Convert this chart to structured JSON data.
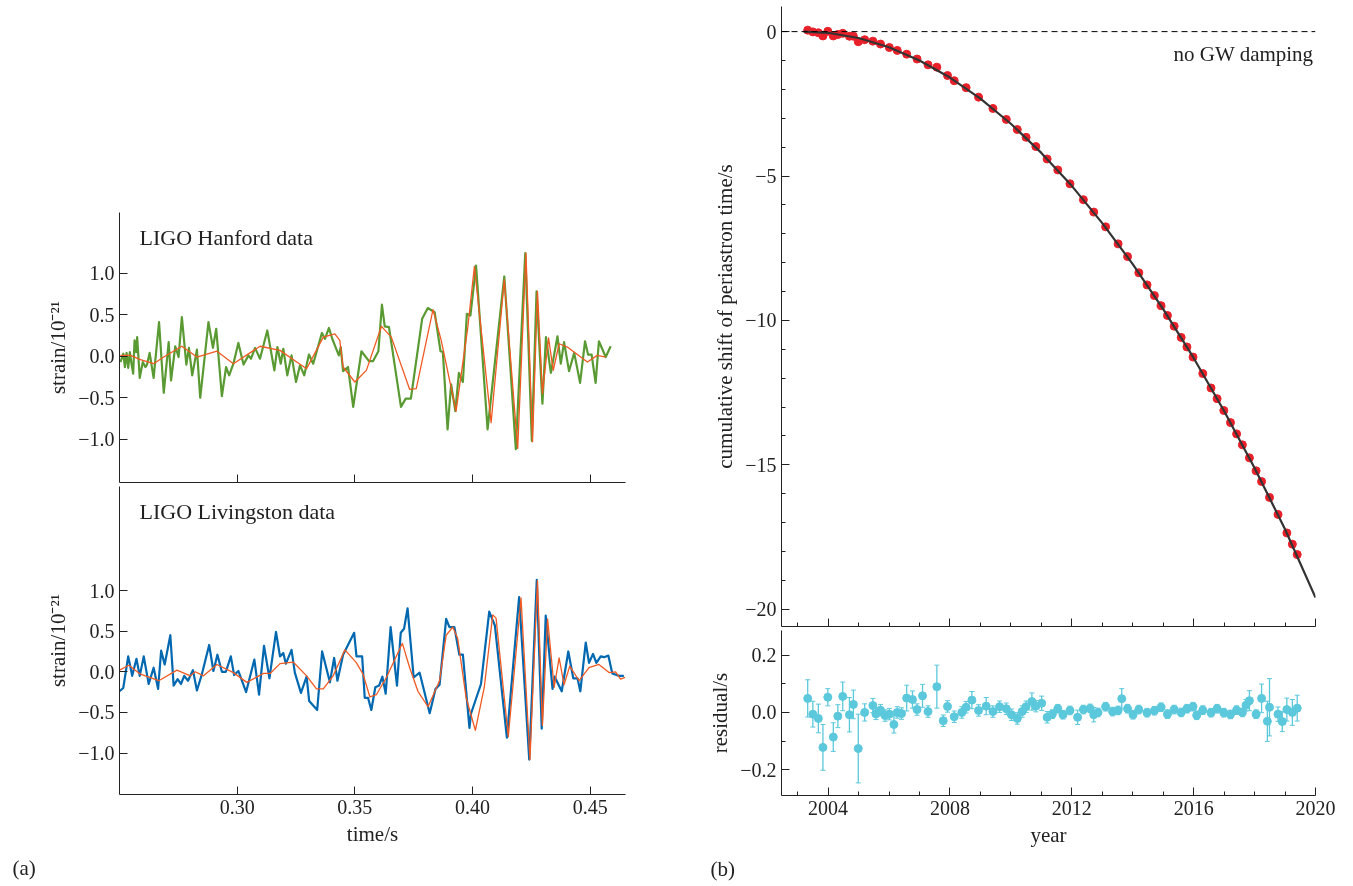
{
  "chart_data": [
    {
      "type": "line",
      "title": "LIGO Hanford data",
      "ylabel": "strain/10⁻²¹",
      "tick_labels": "y",
      "xlim": [
        0.25,
        0.465
      ],
      "ylim": [
        -1.52,
        1.73
      ],
      "xticks": [
        {
          "value": 0.3,
          "label": null
        },
        {
          "value": 0.35,
          "label": null
        },
        {
          "value": 0.4,
          "label": null
        },
        {
          "value": 0.45,
          "label": null
        }
      ],
      "yticks": [
        {
          "value": -1,
          "label": "−1.0"
        },
        {
          "value": -0.5,
          "label": "−0.5"
        },
        {
          "value": 0,
          "label": "0.0"
        },
        {
          "value": 0.5,
          "label": "0.5"
        },
        {
          "value": 1,
          "label": "1.0"
        }
      ],
      "series": [
        {
          "color": "#5a9a32",
          "x": [
            0.2504,
            0.2516,
            0.2523,
            0.253,
            0.2537,
            0.2544,
            0.2552,
            0.2558,
            0.2564,
            0.2571,
            0.2575,
            0.2586,
            0.2599,
            0.261,
            0.2617,
            0.2628,
            0.2645,
            0.2668,
            0.2688,
            0.2709,
            0.2719,
            0.2737,
            0.2751,
            0.2765,
            0.2784,
            0.2795,
            0.2809,
            0.2829,
            0.2843,
            0.2878,
            0.2897,
            0.2911,
            0.2935,
            0.2953,
            0.2966,
            0.2984,
            0.3005,
            0.3027,
            0.3048,
            0.3059,
            0.3076,
            0.3097,
            0.3128,
            0.3158,
            0.3171,
            0.3185,
            0.3196,
            0.3213,
            0.3231,
            0.325,
            0.3267,
            0.3285,
            0.3305,
            0.3323,
            0.336,
            0.3373,
            0.339,
            0.3404,
            0.3418,
            0.3432,
            0.344,
            0.345,
            0.3471,
            0.3493,
            0.3528,
            0.356,
            0.3577,
            0.36,
            0.3615,
            0.3627,
            0.3645,
            0.3696,
            0.3716,
            0.3738,
            0.3786,
            0.381,
            0.3839,
            0.3864,
            0.3874,
            0.3894,
            0.3909,
            0.3927,
            0.3942,
            0.3959,
            0.3976,
            0.3991,
            0.4015,
            0.4064,
            0.4135,
            0.4184,
            0.4224,
            0.4252,
            0.4272,
            0.4297,
            0.4312,
            0.4333,
            0.4361,
            0.4375,
            0.4389,
            0.441,
            0.4432,
            0.4457,
            0.4478,
            0.4491,
            0.4506,
            0.4523,
            0.4537,
            0.4566,
            0.4587
          ],
          "values": [
            -0.07,
            0.03,
            -0.13,
            0.04,
            -0.14,
            0.05,
            -0.11,
            -0.21,
            0.19,
            0.05,
            0.23,
            -0.26,
            -0.07,
            -0.13,
            -0.1,
            0.04,
            -0.26,
            0.41,
            -0.44,
            0.17,
            -0.29,
            0.12,
            -0.01,
            0.47,
            -0.1,
            0.1,
            -0.23,
            0.08,
            -0.5,
            0.41,
            0.1,
            0.33,
            -0.48,
            -0.13,
            -0.23,
            -0.09,
            0.16,
            -0.1,
            0.01,
            -0.03,
            0.1,
            -0.03,
            0.31,
            -0.17,
            0.11,
            -0.09,
            0.09,
            -0.23,
            0.01,
            -0.31,
            -0.11,
            -0.23,
            0.02,
            -0.09,
            0.28,
            0.21,
            0.34,
            0.21,
            0.11,
            0.01,
            0.11,
            -0.18,
            -0.13,
            -0.61,
            0.06,
            -0.06,
            -0.06,
            0.06,
            0.62,
            0.36,
            0.35,
            -0.61,
            -0.51,
            -0.51,
            0.45,
            0.58,
            0.53,
            0.06,
            0.05,
            -0.88,
            -0.34,
            -0.66,
            -0.2,
            -0.31,
            0.51,
            0.49,
            1.09,
            -0.88,
            0.96,
            -1.12,
            1.24,
            -1.02,
            0.78,
            -0.57,
            0.23,
            -0.2,
            0.24,
            -0.09,
            0.17,
            -0.18,
            0.04,
            -0.32,
            0.18,
            0.02,
            0.02,
            -0.32,
            0.18,
            -0.01,
            0.12
          ]
        },
        {
          "color": "#f05a22",
          "x": [
            0.2504,
            0.2547,
            0.2589,
            0.2645,
            0.2688,
            0.2765,
            0.2829,
            0.2914,
            0.2984,
            0.3097,
            0.3182,
            0.3253,
            0.3295,
            0.3366,
            0.3415,
            0.3436,
            0.345,
            0.35,
            0.3549,
            0.3613,
            0.3655,
            0.3733,
            0.3761,
            0.3832,
            0.3867,
            0.393,
            0.398,
            0.4008,
            0.4079,
            0.4135,
            0.4192,
            0.4227,
            0.4255,
            0.4276,
            0.4297,
            0.4323,
            0.4343,
            0.4368,
            0.4403,
            0.4488,
            0.453,
            0.4566
          ],
          "values": [
            0.01,
            0.01,
            -0.04,
            -0.09,
            -0.01,
            0.12,
            -0.01,
            0.06,
            -0.09,
            0.12,
            0.07,
            -0.07,
            -0.15,
            0.23,
            0.27,
            0.19,
            -0.13,
            -0.31,
            -0.17,
            0.36,
            0.23,
            -0.4,
            -0.39,
            0.56,
            0.19,
            -0.66,
            0.35,
            1.08,
            -0.8,
            0.92,
            -1.11,
            1.24,
            -1.03,
            0.78,
            -0.45,
            0.22,
            -0.17,
            0.15,
            0.11,
            -0.07,
            0.01,
            -0.01
          ]
        }
      ]
    },
    {
      "type": "line",
      "title": "LIGO Livingston data",
      "ylabel": "strain/10⁻²¹",
      "xlabel": "time/s",
      "annotations": [
        "(a)"
      ],
      "xlim": [
        0.25,
        0.465
      ],
      "ylim": [
        -1.51,
        2.28
      ],
      "xticks": [
        {
          "value": 0.3,
          "label": "0.30"
        },
        {
          "value": 0.35,
          "label": "0.35"
        },
        {
          "value": 0.4,
          "label": "0.40"
        },
        {
          "value": 0.45,
          "label": "0.45"
        }
      ],
      "yticks": [
        {
          "value": -1,
          "label": "−1.0"
        },
        {
          "value": -0.5,
          "label": "−0.5"
        },
        {
          "value": 0,
          "label": "0.0"
        },
        {
          "value": 0.5,
          "label": "0.5"
        },
        {
          "value": 1,
          "label": "1.0"
        }
      ],
      "series": [
        {
          "color": "#0068b0",
          "x": [
            0.25,
            0.2516,
            0.2537,
            0.2554,
            0.2572,
            0.2586,
            0.2603,
            0.2624,
            0.2645,
            0.2664,
            0.2677,
            0.2692,
            0.2716,
            0.273,
            0.2747,
            0.2761,
            0.2775,
            0.2791,
            0.2812,
            0.2829,
            0.285,
            0.2881,
            0.2899,
            0.2916,
            0.2935,
            0.2952,
            0.2973,
            0.2987,
            0.3005,
            0.3038,
            0.3073,
            0.3093,
            0.3114,
            0.3137,
            0.3165,
            0.3182,
            0.3196,
            0.3207,
            0.3231,
            0.3245,
            0.3271,
            0.3295,
            0.3306,
            0.334,
            0.3361,
            0.3394,
            0.3412,
            0.3426,
            0.345,
            0.3497,
            0.3507,
            0.3531,
            0.3542,
            0.3556,
            0.357,
            0.3587,
            0.3603,
            0.3617,
            0.3631,
            0.3652,
            0.3679,
            0.3695,
            0.3709,
            0.3724,
            0.375,
            0.3775,
            0.3818,
            0.3843,
            0.386,
            0.3888,
            0.3902,
            0.3923,
            0.3944,
            0.3959,
            0.3987,
            0.3994,
            0.4036,
            0.4071,
            0.4095,
            0.4146,
            0.4198,
            0.4241,
            0.4273,
            0.4294,
            0.4311,
            0.434,
            0.4349,
            0.4379,
            0.4407,
            0.4428,
            0.4446,
            0.4458,
            0.4481,
            0.4495,
            0.4512,
            0.4526,
            0.4545,
            0.4559,
            0.4577,
            0.4594,
            0.4623,
            0.4643
          ],
          "values": [
            -0.24,
            -0.2,
            0.19,
            -0.05,
            0.16,
            -0.05,
            0.19,
            -0.15,
            0.05,
            -0.21,
            0.26,
            0.09,
            0.45,
            -0.17,
            -0.09,
            -0.15,
            -0.05,
            -0.11,
            0.02,
            -0.23,
            -0.03,
            0.33,
            0.01,
            0.21,
            0.0,
            0.0,
            0.19,
            -0.04,
            0.01,
            -0.25,
            0.15,
            -0.28,
            0.32,
            -0.08,
            0.49,
            0.19,
            0.23,
            0.1,
            0.27,
            -0.01,
            -0.26,
            -0.06,
            -0.36,
            -0.47,
            0.25,
            -0.13,
            0.17,
            -0.11,
            0.21,
            0.48,
            0.19,
            0.19,
            -0.32,
            -0.32,
            -0.47,
            -0.19,
            -0.17,
            -0.06,
            -0.27,
            0.55,
            -0.17,
            0.48,
            0.53,
            0.78,
            -0.07,
            -0.01,
            -0.51,
            -0.21,
            -0.16,
            0.65,
            0.55,
            0.55,
            0.21,
            0.21,
            -0.69,
            -0.51,
            -0.15,
            0.74,
            0.57,
            -0.81,
            0.92,
            -1.08,
            1.13,
            -0.7,
            0.69,
            -0.21,
            -0.06,
            -0.24,
            0.25,
            -0.08,
            -0.08,
            -0.24,
            0.36,
            0.11,
            0.22,
            0.11,
            0.19,
            0.18,
            0.2,
            -0.02,
            -0.05,
            -0.05
          ]
        },
        {
          "color": "#f05a22",
          "x": [
            0.25,
            0.254,
            0.2589,
            0.2667,
            0.2744,
            0.2801,
            0.2822,
            0.2857,
            0.2914,
            0.2984,
            0.3041,
            0.3112,
            0.314,
            0.3182,
            0.3238,
            0.3295,
            0.3337,
            0.3366,
            0.3408,
            0.3458,
            0.3507,
            0.3535,
            0.3564,
            0.3592,
            0.3634,
            0.3702,
            0.3733,
            0.3768,
            0.3811,
            0.386,
            0.3888,
            0.3916,
            0.3937,
            0.3973,
            0.4012,
            0.405,
            0.4086,
            0.41,
            0.4152,
            0.4206,
            0.4244,
            0.4276,
            0.4297,
            0.4319,
            0.4347,
            0.4368,
            0.4389,
            0.4413,
            0.4453,
            0.4495,
            0.4537,
            0.458,
            0.4608,
            0.4629,
            0.4648
          ],
          "values": [
            0.02,
            0.08,
            -0.03,
            -0.11,
            0.02,
            -0.05,
            0.0,
            -0.05,
            0.09,
            -0.01,
            -0.13,
            -0.02,
            -0.02,
            0.1,
            0.12,
            -0.05,
            -0.21,
            -0.21,
            -0.05,
            0.27,
            0.11,
            -0.03,
            -0.31,
            -0.28,
            -0.07,
            0.35,
            0.05,
            -0.24,
            -0.43,
            -0.11,
            0.45,
            0.55,
            0.41,
            -0.32,
            -0.72,
            -0.19,
            0.7,
            0.66,
            -0.8,
            0.91,
            -1.08,
            1.12,
            -0.66,
            0.65,
            -0.19,
            0.17,
            -0.16,
            0.07,
            -0.11,
            0.05,
            0.09,
            -0.01,
            0.0,
            -0.09,
            -0.07
          ]
        }
      ]
    },
    {
      "type": "line",
      "ylabel": "cumulative shift of periastron time/s",
      "tick_labels": "y",
      "xlim": [
        2002.47,
        2020
      ],
      "ylim": [
        -20.6,
        0.87
      ],
      "xticks": [
        2004,
        2008,
        2012,
        2016,
        2020,
        {
          "value": 2003,
          "label": null
        },
        {
          "value": 2005,
          "label": null
        },
        {
          "value": 2006,
          "label": null
        },
        {
          "value": 2007,
          "label": null
        },
        {
          "value": 2009,
          "label": null
        },
        {
          "value": 2010,
          "label": null
        },
        {
          "value": 2011,
          "label": null
        },
        {
          "value": 2013,
          "label": null
        },
        {
          "value": 2014,
          "label": null
        },
        {
          "value": 2015,
          "label": null
        },
        {
          "value": 2017,
          "label": null
        },
        {
          "value": 2018,
          "label": null
        },
        {
          "value": 2019,
          "label": null
        }
      ],
      "yticks": [
        0,
        {
          "value": -5,
          "label": "−5"
        },
        {
          "value": -10,
          "label": "−10"
        },
        {
          "value": -15,
          "label": "−15"
        },
        {
          "value": -20,
          "label": "−20"
        },
        {
          "value": -1,
          "label": null
        },
        {
          "value": -2,
          "label": null
        },
        {
          "value": -3,
          "label": null
        },
        {
          "value": -4,
          "label": null
        },
        {
          "value": -6,
          "label": null
        },
        {
          "value": -7,
          "label": null
        },
        {
          "value": -8,
          "label": null
        },
        {
          "value": -9,
          "label": null
        },
        {
          "value": -11,
          "label": null
        },
        {
          "value": -12,
          "label": null
        },
        {
          "value": -13,
          "label": null
        },
        {
          "value": -14,
          "label": null
        },
        {
          "value": -16,
          "label": null
        },
        {
          "value": -17,
          "label": null
        },
        {
          "value": -18,
          "label": null
        },
        {
          "value": -19,
          "label": null
        }
      ],
      "ref_lines": [
        {
          "axis": "y",
          "value": 0,
          "label": "no GW damping",
          "line_style": "dashed",
          "color": "#000000"
        }
      ],
      "series": [
        {
          "type": "scatter",
          "marker": "circle",
          "color": "#e8202a",
          "x": [
            2003.33,
            2003.5,
            2003.68,
            2003.83,
            2003.99,
            2004.17,
            2004.32,
            2004.48,
            2004.7,
            2004.83,
            2004.99,
            2005.2,
            2005.47,
            2005.72,
            2006.01,
            2006.27,
            2006.58,
            2006.92,
            2007.28,
            2007.57,
            2007.92,
            2008.14,
            2008.53,
            2008.94,
            2009.41,
            2009.85,
            2010.21,
            2010.5,
            2010.82,
            2011.19,
            2011.54,
            2011.94,
            2012.38,
            2012.72,
            2013.11,
            2013.52,
            2013.83,
            2014.2,
            2014.47,
            2014.71,
            2014.93,
            2015.14,
            2015.36,
            2015.59,
            2015.78,
            2015.98,
            2016.3,
            2016.57,
            2016.77,
            2016.99,
            2017.21,
            2017.41,
            2017.6,
            2017.83,
            2018.05,
            2018.23,
            2018.49,
            2018.77,
            2019.06,
            2019.24,
            2019.4
          ],
          "values": [
            0.05,
            -0.01,
            -0.04,
            -0.15,
            0.01,
            -0.15,
            -0.1,
            -0.06,
            -0.16,
            -0.16,
            -0.35,
            -0.28,
            -0.33,
            -0.43,
            -0.55,
            -0.65,
            -0.78,
            -0.95,
            -1.15,
            -1.23,
            -1.52,
            -1.7,
            -1.94,
            -2.27,
            -2.66,
            -3.04,
            -3.39,
            -3.66,
            -3.98,
            -4.41,
            -4.79,
            -5.27,
            -5.82,
            -6.25,
            -6.76,
            -7.35,
            -7.79,
            -8.35,
            -8.77,
            -9.14,
            -9.49,
            -9.83,
            -10.2,
            -10.59,
            -10.92,
            -11.27,
            -11.84,
            -12.34,
            -12.71,
            -13.12,
            -13.54,
            -13.93,
            -14.31,
            -14.76,
            -15.21,
            -15.58,
            -16.13,
            -16.72,
            -17.36,
            -17.75,
            -18.11
          ]
        },
        {
          "type": "line",
          "color": "#333333",
          "x": [
            2003.2,
            2004,
            2005,
            2006,
            2007,
            2008,
            2009,
            2010,
            2011,
            2012,
            2013,
            2014,
            2015,
            2016,
            2017,
            2018,
            2019,
            2020
          ],
          "values": [
            0,
            -0.04,
            -0.22,
            -0.54,
            -1.0,
            -1.59,
            -2.32,
            -3.19,
            -4.2,
            -5.34,
            -6.63,
            -8.05,
            -9.61,
            -11.3,
            -13.14,
            -15.11,
            -17.23,
            -19.6
          ]
        }
      ]
    },
    {
      "type": "scatter",
      "ylabel": "residual/s",
      "xlabel": "year",
      "annotations": [
        "(b)"
      ],
      "marker": "circle",
      "xlim": [
        2002.47,
        2020
      ],
      "ylim": [
        -0.29,
        0.286
      ],
      "xticks": [
        2004,
        2008,
        2012,
        2016,
        2020,
        {
          "value": 2003,
          "label": null
        },
        {
          "value": 2005,
          "label": null
        },
        {
          "value": 2006,
          "label": null
        },
        {
          "value": 2007,
          "label": null
        },
        {
          "value": 2009,
          "label": null
        },
        {
          "value": 2010,
          "label": null
        },
        {
          "value": 2011,
          "label": null
        },
        {
          "value": 2013,
          "label": null
        },
        {
          "value": 2014,
          "label": null
        },
        {
          "value": 2015,
          "label": null
        },
        {
          "value": 2017,
          "label": null
        },
        {
          "value": 2018,
          "label": null
        },
        {
          "value": 2019,
          "label": null
        }
      ],
      "yticks": [
        {
          "value": 0.2,
          "label": "0.2"
        },
        {
          "value": 0,
          "label": "0.0"
        },
        {
          "value": -0.2,
          "label": "−0.2"
        },
        {
          "value": 0.1,
          "label": null
        },
        {
          "value": -0.1,
          "label": null
        }
      ],
      "series": [
        {
          "color": "#5bc8dc",
          "x": [
            2003.33,
            2003.5,
            2003.68,
            2003.83,
            2003.99,
            2004.17,
            2004.32,
            2004.48,
            2004.7,
            2004.83,
            2004.99,
            2005.2,
            2005.47,
            2005.57,
            2005.72,
            2005.87,
            2006.01,
            2006.16,
            2006.27,
            2006.41,
            2006.58,
            2006.77,
            2006.92,
            2007.1,
            2007.28,
            2007.57,
            2007.78,
            2007.92,
            2008.14,
            2008.39,
            2008.53,
            2008.72,
            2008.94,
            2009.19,
            2009.41,
            2009.63,
            2009.85,
            2010.02,
            2010.21,
            2010.37,
            2010.5,
            2010.69,
            2010.82,
            2011.01,
            2011.19,
            2011.36,
            2011.54,
            2011.71,
            2011.94,
            2012.19,
            2012.38,
            2012.6,
            2012.72,
            2012.86,
            2013.11,
            2013.34,
            2013.52,
            2013.64,
            2013.83,
            2014.01,
            2014.2,
            2014.47,
            2014.71,
            2014.93,
            2015.14,
            2015.36,
            2015.59,
            2015.78,
            2015.98,
            2016.1,
            2016.3,
            2016.57,
            2016.77,
            2016.99,
            2017.21,
            2017.41,
            2017.6,
            2017.72,
            2017.83,
            2018.05,
            2018.23,
            2018.42,
            2018.49,
            2018.77,
            2018.91,
            2019.06,
            2019.24,
            2019.4
          ],
          "values": [
            0.049,
            -0.006,
            -0.021,
            -0.122,
            0.053,
            -0.086,
            -0.013,
            0.056,
            -0.008,
            0.028,
            -0.126,
            0.0,
            0.024,
            -0.005,
            0.008,
            -0.011,
            -0.006,
            -0.042,
            0.0,
            -0.004,
            0.05,
            0.045,
            0.01,
            0.058,
            0.003,
            0.09,
            -0.029,
            0.021,
            -0.015,
            0.0,
            0.018,
            0.043,
            0.007,
            0.022,
            0.003,
            0.02,
            0.013,
            -0.008,
            -0.021,
            0.003,
            0.02,
            0.038,
            0.022,
            0.032,
            -0.017,
            -0.006,
            0.013,
            -0.008,
            0.007,
            -0.017,
            0.01,
            0.014,
            -0.008,
            0.0,
            0.02,
            0.003,
            0.007,
            0.048,
            0.013,
            -0.008,
            0.01,
            -0.001,
            0.006,
            0.018,
            -0.006,
            0.01,
            0.0,
            0.013,
            0.02,
            -0.01,
            0.008,
            -0.001,
            0.013,
            -0.001,
            -0.007,
            0.008,
            0.0,
            0.025,
            0.041,
            -0.006,
            0.049,
            -0.031,
            0.018,
            -0.006,
            -0.032,
            0.01,
            0.0,
            0.015
          ],
          "errors": [
            0.065,
            0.045,
            0.05,
            0.08,
            0.03,
            0.05,
            0.04,
            0.05,
            0.06,
            0.05,
            0.12,
            0.03,
            0.025,
            0.02,
            0.02,
            0.02,
            0.02,
            0.03,
            0.02,
            0.02,
            0.045,
            0.03,
            0.02,
            0.04,
            0.02,
            0.075,
            0.02,
            0.02,
            0.02,
            0.02,
            0.02,
            0.03,
            0.02,
            0.03,
            0.02,
            0.02,
            0.02,
            0.02,
            0.02,
            0.02,
            0.02,
            0.03,
            0.02,
            0.025,
            0.02,
            0.015,
            0.015,
            0.015,
            0.015,
            0.025,
            0.015,
            0.015,
            0.025,
            0.015,
            0.015,
            0.015,
            0.015,
            0.035,
            0.015,
            0.015,
            0.015,
            0.015,
            0.015,
            0.015,
            0.015,
            0.015,
            0.015,
            0.015,
            0.015,
            0.015,
            0.015,
            0.015,
            0.015,
            0.015,
            0.015,
            0.015,
            0.015,
            0.02,
            0.035,
            0.015,
            0.05,
            0.07,
            0.1,
            0.025,
            0.035,
            0.04,
            0.045,
            0.045
          ]
        }
      ]
    }
  ]
}
